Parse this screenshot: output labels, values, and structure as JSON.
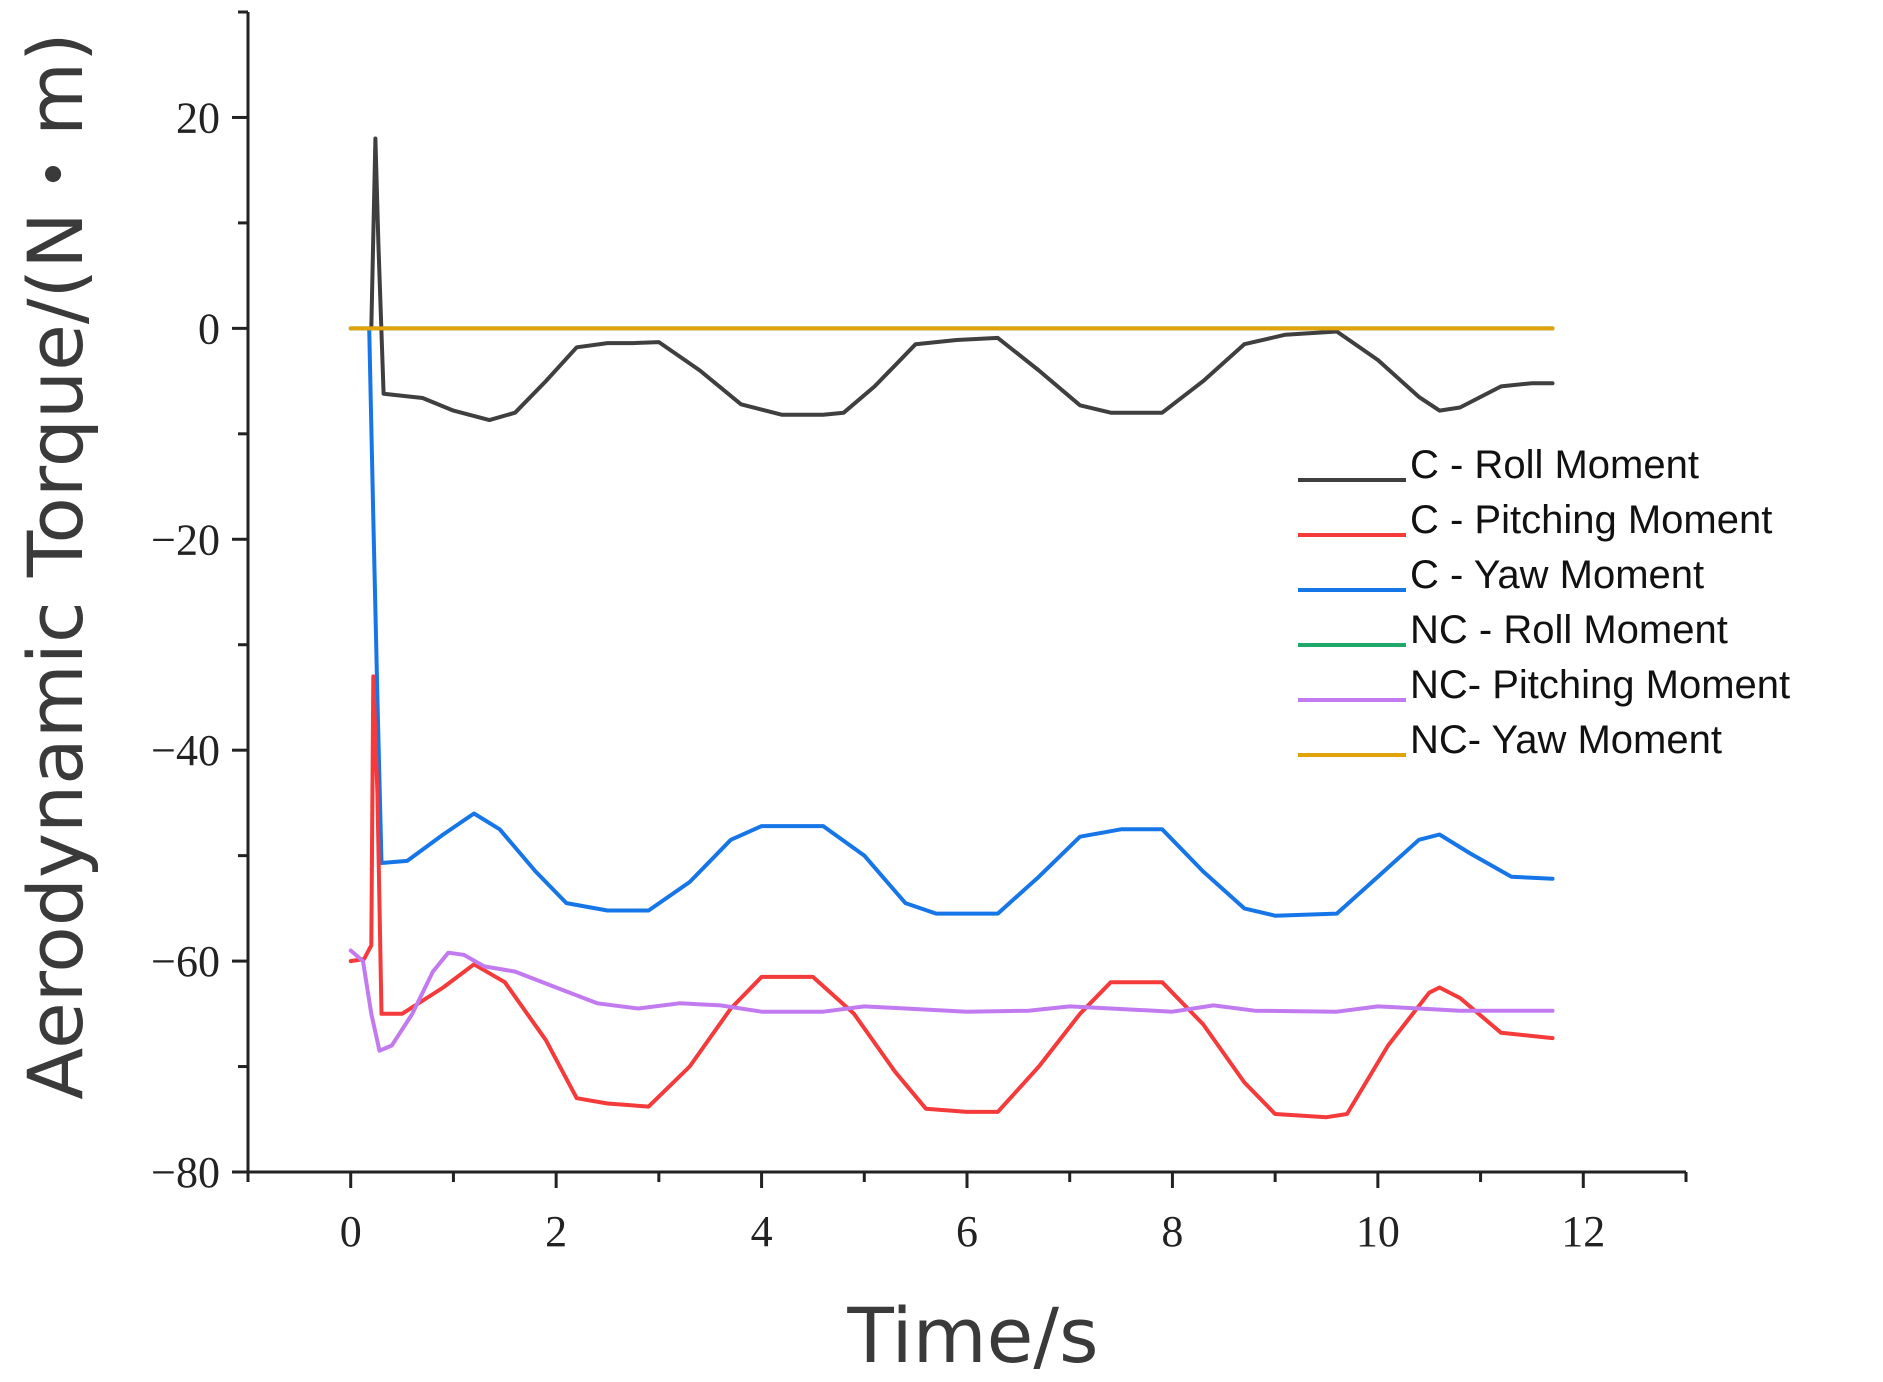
{
  "chart_data": {
    "type": "line",
    "xlabel": "Time/s",
    "ylabel": "Aerodynamic Torque/(N・m)",
    "xlim": [
      -1,
      13
    ],
    "ylim": [
      -80,
      30
    ],
    "x_ticks": [
      0,
      2,
      4,
      6,
      8,
      10,
      12
    ],
    "x_tick_labels": [
      "0",
      "2",
      "4",
      "6",
      "8",
      "10",
      "12"
    ],
    "y_ticks": [
      20,
      0,
      -20,
      -40,
      -60,
      -80
    ],
    "y_tick_labels": [
      "20",
      "0",
      "−20",
      "−40",
      "−60",
      "−80"
    ],
    "legend_position": "right",
    "series": [
      {
        "name": "C - Roll Moment",
        "color": "#3f3f3f",
        "points": [
          [
            0.2,
            0
          ],
          [
            0.24,
            18
          ],
          [
            0.27,
            8
          ],
          [
            0.32,
            -6.2
          ],
          [
            0.7,
            -6.6
          ],
          [
            1.0,
            -7.8
          ],
          [
            1.35,
            -8.7
          ],
          [
            1.6,
            -8
          ],
          [
            1.9,
            -5
          ],
          [
            2.2,
            -1.8
          ],
          [
            2.5,
            -1.4
          ],
          [
            2.75,
            -1.4
          ],
          [
            3.0,
            -1.3
          ],
          [
            3.4,
            -4
          ],
          [
            3.8,
            -7.2
          ],
          [
            4.2,
            -8.2
          ],
          [
            4.6,
            -8.2
          ],
          [
            4.8,
            -8
          ],
          [
            5.1,
            -5.5
          ],
          [
            5.5,
            -1.5
          ],
          [
            5.9,
            -1.1
          ],
          [
            6.3,
            -0.9
          ],
          [
            6.7,
            -4
          ],
          [
            7.1,
            -7.3
          ],
          [
            7.4,
            -8
          ],
          [
            7.9,
            -8
          ],
          [
            8.3,
            -5
          ],
          [
            8.7,
            -1.5
          ],
          [
            9.1,
            -0.6
          ],
          [
            9.6,
            -0.3
          ],
          [
            10.0,
            -3
          ],
          [
            10.4,
            -6.5
          ],
          [
            10.6,
            -7.8
          ],
          [
            10.8,
            -7.5
          ],
          [
            11.2,
            -5.5
          ],
          [
            11.5,
            -5.2
          ],
          [
            11.7,
            -5.2
          ]
        ]
      },
      {
        "name": "C - Pitching Moment",
        "color": "#f43a3a",
        "points": [
          [
            0.0,
            -60
          ],
          [
            0.13,
            -59.8
          ],
          [
            0.2,
            -58.5
          ],
          [
            0.22,
            -33
          ],
          [
            0.26,
            -44
          ],
          [
            0.3,
            -65
          ],
          [
            0.5,
            -65
          ],
          [
            0.9,
            -62.5
          ],
          [
            1.2,
            -60.3
          ],
          [
            1.5,
            -62
          ],
          [
            1.9,
            -67.5
          ],
          [
            2.2,
            -73
          ],
          [
            2.5,
            -73.5
          ],
          [
            2.9,
            -73.8
          ],
          [
            3.3,
            -70
          ],
          [
            3.7,
            -64.5
          ],
          [
            4.0,
            -61.5
          ],
          [
            4.5,
            -61.5
          ],
          [
            4.9,
            -65
          ],
          [
            5.3,
            -70.5
          ],
          [
            5.6,
            -74
          ],
          [
            6.0,
            -74.3
          ],
          [
            6.3,
            -74.3
          ],
          [
            6.7,
            -70
          ],
          [
            7.1,
            -65
          ],
          [
            7.4,
            -62
          ],
          [
            7.9,
            -62
          ],
          [
            8.3,
            -66
          ],
          [
            8.7,
            -71.5
          ],
          [
            9.0,
            -74.5
          ],
          [
            9.5,
            -74.8
          ],
          [
            9.7,
            -74.5
          ],
          [
            10.1,
            -68
          ],
          [
            10.5,
            -63
          ],
          [
            10.6,
            -62.5
          ],
          [
            10.8,
            -63.5
          ],
          [
            11.2,
            -66.8
          ],
          [
            11.7,
            -67.3
          ]
        ]
      },
      {
        "name": "C - Yaw Moment",
        "color": "#1676e8",
        "points": [
          [
            0.18,
            0
          ],
          [
            0.22,
            -18
          ],
          [
            0.26,
            -35
          ],
          [
            0.3,
            -50.7
          ],
          [
            0.55,
            -50.5
          ],
          [
            0.9,
            -48
          ],
          [
            1.2,
            -46
          ],
          [
            1.45,
            -47.5
          ],
          [
            1.8,
            -51.5
          ],
          [
            2.1,
            -54.5
          ],
          [
            2.5,
            -55.2
          ],
          [
            2.9,
            -55.2
          ],
          [
            3.3,
            -52.5
          ],
          [
            3.7,
            -48.5
          ],
          [
            4.0,
            -47.2
          ],
          [
            4.6,
            -47.2
          ],
          [
            5.0,
            -50
          ],
          [
            5.4,
            -54.5
          ],
          [
            5.7,
            -55.5
          ],
          [
            6.3,
            -55.5
          ],
          [
            6.7,
            -52
          ],
          [
            7.1,
            -48.2
          ],
          [
            7.5,
            -47.5
          ],
          [
            7.9,
            -47.5
          ],
          [
            8.3,
            -51.5
          ],
          [
            8.7,
            -55
          ],
          [
            9.0,
            -55.7
          ],
          [
            9.6,
            -55.5
          ],
          [
            10.0,
            -52
          ],
          [
            10.4,
            -48.5
          ],
          [
            10.6,
            -48
          ],
          [
            10.9,
            -49.8
          ],
          [
            11.3,
            -52
          ],
          [
            11.7,
            -52.2
          ]
        ]
      },
      {
        "name": "NC - Roll Moment",
        "color": "#20a86b",
        "points": [
          [
            0.0,
            0
          ],
          [
            11.7,
            0
          ]
        ]
      },
      {
        "name": "NC- Pitching Moment",
        "color": "#c27af0",
        "points": [
          [
            0.0,
            -59
          ],
          [
            0.12,
            -60
          ],
          [
            0.2,
            -65
          ],
          [
            0.28,
            -68.5
          ],
          [
            0.4,
            -68
          ],
          [
            0.6,
            -65
          ],
          [
            0.8,
            -61
          ],
          [
            0.95,
            -59.2
          ],
          [
            1.1,
            -59.4
          ],
          [
            1.3,
            -60.5
          ],
          [
            1.6,
            -61
          ],
          [
            2.0,
            -62.5
          ],
          [
            2.4,
            -64
          ],
          [
            2.8,
            -64.5
          ],
          [
            3.2,
            -64
          ],
          [
            3.6,
            -64.2
          ],
          [
            4.0,
            -64.8
          ],
          [
            4.6,
            -64.8
          ],
          [
            5.0,
            -64.3
          ],
          [
            5.4,
            -64.5
          ],
          [
            6.0,
            -64.8
          ],
          [
            6.6,
            -64.7
          ],
          [
            7.0,
            -64.3
          ],
          [
            7.4,
            -64.5
          ],
          [
            8.0,
            -64.8
          ],
          [
            8.4,
            -64.2
          ],
          [
            8.8,
            -64.7
          ],
          [
            9.6,
            -64.8
          ],
          [
            10.0,
            -64.3
          ],
          [
            10.4,
            -64.5
          ],
          [
            10.8,
            -64.7
          ],
          [
            11.7,
            -64.7
          ]
        ]
      },
      {
        "name": "NC- Yaw Moment",
        "color": "#e2a20c",
        "points": [
          [
            0.0,
            0
          ],
          [
            11.7,
            0
          ]
        ]
      }
    ]
  }
}
